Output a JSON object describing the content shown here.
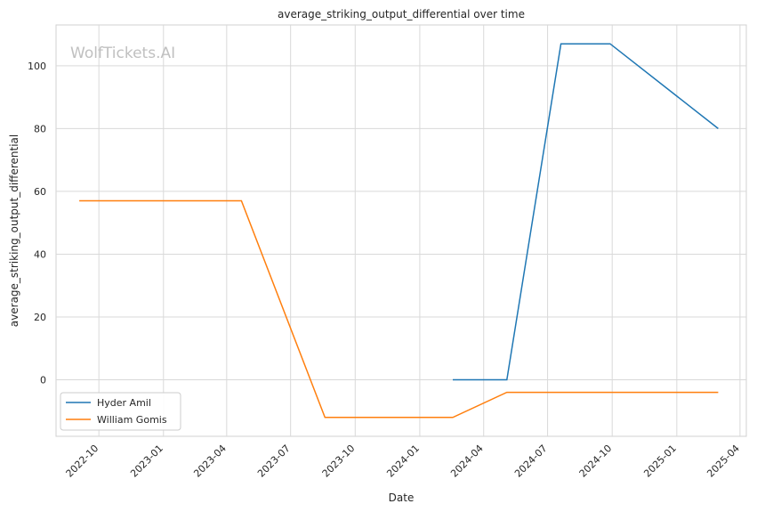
{
  "chart_data": {
    "type": "line",
    "title": "average_striking_output_differential over time",
    "xlabel": "Date",
    "ylabel": "average_striking_output_differential",
    "watermark": "WolfTickets.AI",
    "x_ticks": [
      "2022-10",
      "2023-01",
      "2023-04",
      "2023-07",
      "2023-10",
      "2024-01",
      "2024-04",
      "2024-07",
      "2024-10",
      "2025-01",
      "2025-04"
    ],
    "y_ticks": [
      0,
      20,
      40,
      60,
      80,
      100
    ],
    "xlim": [
      "2022-08-01",
      "2025-04-10"
    ],
    "ylim": [
      -18,
      113
    ],
    "grid": true,
    "legend_position": "lower-left",
    "series": [
      {
        "name": "Hyder Amil",
        "color": "#1f77b4",
        "points": [
          {
            "x": "2024-02-17",
            "y": 0
          },
          {
            "x": "2024-05-04",
            "y": 0
          },
          {
            "x": "2024-07-20",
            "y": 107
          },
          {
            "x": "2024-09-28",
            "y": 107
          },
          {
            "x": "2025-03-01",
            "y": 80
          }
        ]
      },
      {
        "name": "William Gomis",
        "color": "#ff7f0e",
        "points": [
          {
            "x": "2022-09-03",
            "y": 57
          },
          {
            "x": "2023-04-22",
            "y": 57
          },
          {
            "x": "2023-08-19",
            "y": -12
          },
          {
            "x": "2024-02-17",
            "y": -12
          },
          {
            "x": "2024-05-04",
            "y": -4
          },
          {
            "x": "2025-03-01",
            "y": -4
          }
        ]
      }
    ]
  }
}
